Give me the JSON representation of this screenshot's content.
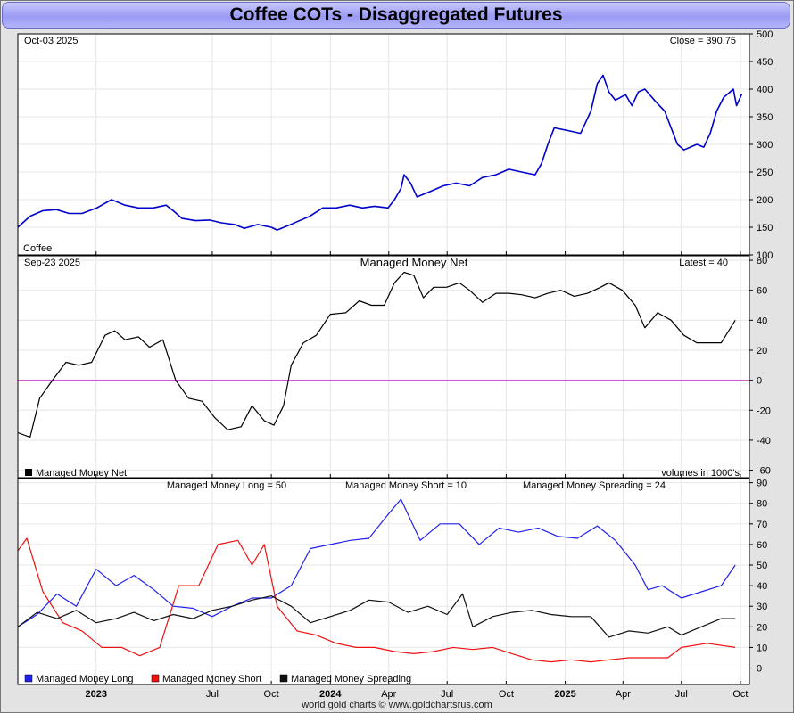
{
  "title": "Coffee COTs - Disaggregated Futures",
  "footer": "world gold charts © www.goldchartsrus.com",
  "x_axis": {
    "tick_labels": [
      {
        "label": "2023",
        "bold": true,
        "date": "2023-01-01"
      },
      {
        "label": "Jul",
        "bold": false,
        "date": "2023-07-01"
      },
      {
        "label": "Oct",
        "bold": false,
        "date": "2023-10-01"
      },
      {
        "label": "2024",
        "bold": true,
        "date": "2024-01-01"
      },
      {
        "label": "Apr",
        "bold": false,
        "date": "2024-04-01"
      },
      {
        "label": "Jul",
        "bold": false,
        "date": "2024-07-01"
      },
      {
        "label": "Oct",
        "bold": false,
        "date": "2024-10-01"
      },
      {
        "label": "2025",
        "bold": true,
        "date": "2025-01-01"
      },
      {
        "label": "Apr",
        "bold": false,
        "date": "2025-04-01"
      },
      {
        "label": "Jul",
        "bold": false,
        "date": "2025-07-01"
      },
      {
        "label": "Oct",
        "bold": false,
        "date": "2025-10-01"
      }
    ]
  },
  "colors": {
    "price": "#0000cc",
    "net": "#000000",
    "zero_line": "#cc44cc",
    "long": "#2020ee",
    "short": "#ee1111",
    "spreading": "#111111",
    "grid": "#e6e6e6",
    "title_bg": "#a0a0f5"
  },
  "chart_data": [
    {
      "type": "line",
      "name": "price",
      "date_label": "Oct-03  2025",
      "readout": "Close = 390.75",
      "legend": "Coffee",
      "ylim": [
        100,
        500
      ],
      "yticks": [
        "100",
        "150",
        "200",
        "250",
        "300",
        "350",
        "400",
        "450",
        "500"
      ],
      "points": [
        [
          "2022-09-01",
          150
        ],
        [
          "2022-09-20",
          170
        ],
        [
          "2022-10-10",
          180
        ],
        [
          "2022-10-31",
          182
        ],
        [
          "2022-11-20",
          175
        ],
        [
          "2022-12-10",
          175
        ],
        [
          "2023-01-02",
          185
        ],
        [
          "2023-01-25",
          200
        ],
        [
          "2023-02-15",
          190
        ],
        [
          "2023-03-08",
          185
        ],
        [
          "2023-03-31",
          185
        ],
        [
          "2023-04-20",
          190
        ],
        [
          "2023-05-01",
          180
        ],
        [
          "2023-05-15",
          166
        ],
        [
          "2023-06-05",
          162
        ],
        [
          "2023-06-27",
          163
        ],
        [
          "2023-07-15",
          158
        ],
        [
          "2023-08-05",
          155
        ],
        [
          "2023-08-20",
          148
        ],
        [
          "2023-09-10",
          155
        ],
        [
          "2023-10-01",
          150
        ],
        [
          "2023-10-10",
          145
        ],
        [
          "2023-10-25",
          152
        ],
        [
          "2023-11-10",
          160
        ],
        [
          "2023-11-30",
          170
        ],
        [
          "2023-12-20",
          185
        ],
        [
          "2024-01-10",
          185
        ],
        [
          "2024-01-31",
          190
        ],
        [
          "2024-02-20",
          185
        ],
        [
          "2024-03-10",
          188
        ],
        [
          "2024-03-31",
          185
        ],
        [
          "2024-04-10",
          200
        ],
        [
          "2024-04-20",
          220
        ],
        [
          "2024-04-25",
          245
        ],
        [
          "2024-05-05",
          230
        ],
        [
          "2024-05-15",
          205
        ],
        [
          "2024-06-05",
          215
        ],
        [
          "2024-06-25",
          225
        ],
        [
          "2024-07-15",
          230
        ],
        [
          "2024-08-05",
          225
        ],
        [
          "2024-08-25",
          240
        ],
        [
          "2024-09-15",
          245
        ],
        [
          "2024-10-05",
          255
        ],
        [
          "2024-10-25",
          250
        ],
        [
          "2024-11-15",
          245
        ],
        [
          "2024-11-25",
          265
        ],
        [
          "2024-12-05",
          300
        ],
        [
          "2024-12-15",
          330
        ],
        [
          "2025-01-05",
          325
        ],
        [
          "2025-01-25",
          320
        ],
        [
          "2025-02-10",
          360
        ],
        [
          "2025-02-20",
          410
        ],
        [
          "2025-03-01",
          425
        ],
        [
          "2025-03-10",
          395
        ],
        [
          "2025-03-20",
          380
        ],
        [
          "2025-04-05",
          390
        ],
        [
          "2025-04-15",
          370
        ],
        [
          "2025-04-25",
          395
        ],
        [
          "2025-05-05",
          400
        ],
        [
          "2025-05-20",
          380
        ],
        [
          "2025-06-05",
          360
        ],
        [
          "2025-06-15",
          330
        ],
        [
          "2025-06-25",
          300
        ],
        [
          "2025-07-05",
          290
        ],
        [
          "2025-07-15",
          295
        ],
        [
          "2025-07-25",
          300
        ],
        [
          "2025-08-05",
          295
        ],
        [
          "2025-08-15",
          320
        ],
        [
          "2025-08-25",
          360
        ],
        [
          "2025-09-05",
          385
        ],
        [
          "2025-09-15",
          395
        ],
        [
          "2025-09-20",
          400
        ],
        [
          "2025-09-25",
          370
        ],
        [
          "2025-10-03",
          390.75
        ]
      ]
    },
    {
      "type": "line",
      "name": "managed-money-net",
      "title": "Managed Money Net",
      "date_label": "Sep-23  2025",
      "readout": "Latest = 40",
      "legend": "Managed Money Net",
      "units": "volumes in 1000's",
      "ylim": [
        -65,
        83
      ],
      "yticks": [
        "-60",
        "-40",
        "-20",
        "0",
        "20",
        "40",
        "60",
        "80"
      ],
      "points": [
        [
          "2022-09-01",
          -35
        ],
        [
          "2022-09-20",
          -38
        ],
        [
          "2022-10-05",
          -12
        ],
        [
          "2022-10-25",
          0
        ],
        [
          "2022-11-15",
          12
        ],
        [
          "2022-12-05",
          10
        ],
        [
          "2022-12-25",
          12
        ],
        [
          "2023-01-15",
          30
        ],
        [
          "2023-01-30",
          33
        ],
        [
          "2023-02-15",
          27
        ],
        [
          "2023-03-08",
          29
        ],
        [
          "2023-03-25",
          22
        ],
        [
          "2023-04-15",
          27
        ],
        [
          "2023-05-05",
          0
        ],
        [
          "2023-05-25",
          -12
        ],
        [
          "2023-06-15",
          -14
        ],
        [
          "2023-07-05",
          -25
        ],
        [
          "2023-07-25",
          -33
        ],
        [
          "2023-08-15",
          -31
        ],
        [
          "2023-09-01",
          -17
        ],
        [
          "2023-09-20",
          -27
        ],
        [
          "2023-10-05",
          -30
        ],
        [
          "2023-10-20",
          -17
        ],
        [
          "2023-11-01",
          10
        ],
        [
          "2023-11-20",
          25
        ],
        [
          "2023-12-10",
          30
        ],
        [
          "2024-01-01",
          44
        ],
        [
          "2024-01-25",
          45
        ],
        [
          "2024-02-15",
          53
        ],
        [
          "2024-03-05",
          50
        ],
        [
          "2024-03-25",
          50
        ],
        [
          "2024-04-10",
          65
        ],
        [
          "2024-04-25",
          72
        ],
        [
          "2024-05-10",
          70
        ],
        [
          "2024-05-25",
          55
        ],
        [
          "2024-06-10",
          62
        ],
        [
          "2024-06-30",
          62
        ],
        [
          "2024-07-20",
          65
        ],
        [
          "2024-08-05",
          60
        ],
        [
          "2024-08-25",
          52
        ],
        [
          "2024-09-15",
          58
        ],
        [
          "2024-10-05",
          58
        ],
        [
          "2024-10-25",
          57
        ],
        [
          "2024-11-15",
          55
        ],
        [
          "2024-12-05",
          58
        ],
        [
          "2024-12-25",
          60
        ],
        [
          "2025-01-15",
          56
        ],
        [
          "2025-02-05",
          58
        ],
        [
          "2025-02-25",
          62
        ],
        [
          "2025-03-10",
          65
        ],
        [
          "2025-03-31",
          60
        ],
        [
          "2025-04-20",
          50
        ],
        [
          "2025-05-05",
          35
        ],
        [
          "2025-05-25",
          45
        ],
        [
          "2025-06-15",
          40
        ],
        [
          "2025-07-05",
          30
        ],
        [
          "2025-07-25",
          25
        ],
        [
          "2025-08-15",
          25
        ],
        [
          "2025-09-01",
          25
        ],
        [
          "2025-09-23",
          40
        ]
      ]
    },
    {
      "type": "line",
      "name": "managed-money-components",
      "legend_readouts": [
        "Managed Money Long = 50",
        "Managed Money Short = 10",
        "Managed Money Spreading = 24"
      ],
      "ylim": [
        -8,
        92
      ],
      "yticks": [
        "0",
        "10",
        "20",
        "30",
        "40",
        "50",
        "60",
        "70",
        "80",
        "90"
      ],
      "series": [
        {
          "key": "long",
          "name": "Managed Money Long",
          "points": [
            [
              "2022-09-01",
              20
            ],
            [
              "2022-10-01",
              26
            ],
            [
              "2022-11-01",
              36
            ],
            [
              "2022-12-01",
              30
            ],
            [
              "2023-01-01",
              48
            ],
            [
              "2023-02-01",
              40
            ],
            [
              "2023-03-01",
              45
            ],
            [
              "2023-04-01",
              38
            ],
            [
              "2023-05-01",
              30
            ],
            [
              "2023-06-01",
              29
            ],
            [
              "2023-07-01",
              25
            ],
            [
              "2023-08-01",
              30
            ],
            [
              "2023-09-01",
              34
            ],
            [
              "2023-10-01",
              34
            ],
            [
              "2023-11-01",
              40
            ],
            [
              "2023-12-01",
              58
            ],
            [
              "2024-01-01",
              60
            ],
            [
              "2024-02-01",
              62
            ],
            [
              "2024-03-01",
              63
            ],
            [
              "2024-04-01",
              75
            ],
            [
              "2024-04-20",
              82
            ],
            [
              "2024-05-20",
              62
            ],
            [
              "2024-06-20",
              70
            ],
            [
              "2024-07-20",
              70
            ],
            [
              "2024-08-20",
              60
            ],
            [
              "2024-09-20",
              68
            ],
            [
              "2024-10-20",
              66
            ],
            [
              "2024-11-20",
              68
            ],
            [
              "2024-12-20",
              64
            ],
            [
              "2025-01-20",
              63
            ],
            [
              "2025-02-20",
              69
            ],
            [
              "2025-03-20",
              62
            ],
            [
              "2025-04-20",
              50
            ],
            [
              "2025-05-10",
              38
            ],
            [
              "2025-06-01",
              40
            ],
            [
              "2025-07-01",
              34
            ],
            [
              "2025-08-01",
              37
            ],
            [
              "2025-09-01",
              40
            ],
            [
              "2025-09-23",
              50
            ]
          ]
        },
        {
          "key": "short",
          "name": "Managed Money Short",
          "points": [
            [
              "2022-09-01",
              57
            ],
            [
              "2022-09-15",
              63
            ],
            [
              "2022-10-10",
              37
            ],
            [
              "2022-11-10",
              22
            ],
            [
              "2022-12-10",
              18
            ],
            [
              "2023-01-10",
              10
            ],
            [
              "2023-02-10",
              10
            ],
            [
              "2023-03-10",
              6
            ],
            [
              "2023-04-10",
              10
            ],
            [
              "2023-05-10",
              40
            ],
            [
              "2023-06-10",
              40
            ],
            [
              "2023-07-10",
              60
            ],
            [
              "2023-08-10",
              62
            ],
            [
              "2023-09-01",
              50
            ],
            [
              "2023-09-20",
              60
            ],
            [
              "2023-10-10",
              30
            ],
            [
              "2023-11-10",
              18
            ],
            [
              "2023-12-10",
              16
            ],
            [
              "2024-01-10",
              12
            ],
            [
              "2024-02-10",
              10
            ],
            [
              "2024-03-10",
              10
            ],
            [
              "2024-04-10",
              8
            ],
            [
              "2024-05-10",
              7
            ],
            [
              "2024-06-10",
              8
            ],
            [
              "2024-07-10",
              10
            ],
            [
              "2024-08-10",
              9
            ],
            [
              "2024-09-10",
              10
            ],
            [
              "2024-10-10",
              7
            ],
            [
              "2024-11-10",
              4
            ],
            [
              "2024-12-10",
              3
            ],
            [
              "2025-01-10",
              4
            ],
            [
              "2025-02-10",
              3
            ],
            [
              "2025-03-10",
              4
            ],
            [
              "2025-04-10",
              5
            ],
            [
              "2025-05-10",
              5
            ],
            [
              "2025-06-10",
              5
            ],
            [
              "2025-07-01",
              10
            ],
            [
              "2025-08-10",
              12
            ],
            [
              "2025-09-23",
              10
            ]
          ]
        },
        {
          "key": "spreading",
          "name": "Managed Money Spreading",
          "points": [
            [
              "2022-09-01",
              20
            ],
            [
              "2022-10-01",
              27
            ],
            [
              "2022-11-01",
              24
            ],
            [
              "2022-12-01",
              28
            ],
            [
              "2023-01-01",
              22
            ],
            [
              "2023-02-01",
              24
            ],
            [
              "2023-03-01",
              27
            ],
            [
              "2023-04-01",
              23
            ],
            [
              "2023-05-01",
              26
            ],
            [
              "2023-06-01",
              24
            ],
            [
              "2023-07-01",
              28
            ],
            [
              "2023-08-01",
              30
            ],
            [
              "2023-09-01",
              33
            ],
            [
              "2023-10-01",
              35
            ],
            [
              "2023-11-01",
              30
            ],
            [
              "2023-12-01",
              22
            ],
            [
              "2024-01-01",
              25
            ],
            [
              "2024-02-01",
              28
            ],
            [
              "2024-03-01",
              33
            ],
            [
              "2024-04-01",
              32
            ],
            [
              "2024-05-01",
              27
            ],
            [
              "2024-06-01",
              30
            ],
            [
              "2024-07-01",
              26
            ],
            [
              "2024-07-25",
              36
            ],
            [
              "2024-08-10",
              20
            ],
            [
              "2024-09-10",
              25
            ],
            [
              "2024-10-10",
              27
            ],
            [
              "2024-11-10",
              28
            ],
            [
              "2024-12-10",
              26
            ],
            [
              "2025-01-10",
              25
            ],
            [
              "2025-02-10",
              25
            ],
            [
              "2025-03-10",
              15
            ],
            [
              "2025-04-10",
              18
            ],
            [
              "2025-05-10",
              17
            ],
            [
              "2025-06-10",
              20
            ],
            [
              "2025-07-01",
              16
            ],
            [
              "2025-08-01",
              20
            ],
            [
              "2025-09-01",
              24
            ],
            [
              "2025-09-23",
              24
            ]
          ]
        }
      ]
    }
  ]
}
